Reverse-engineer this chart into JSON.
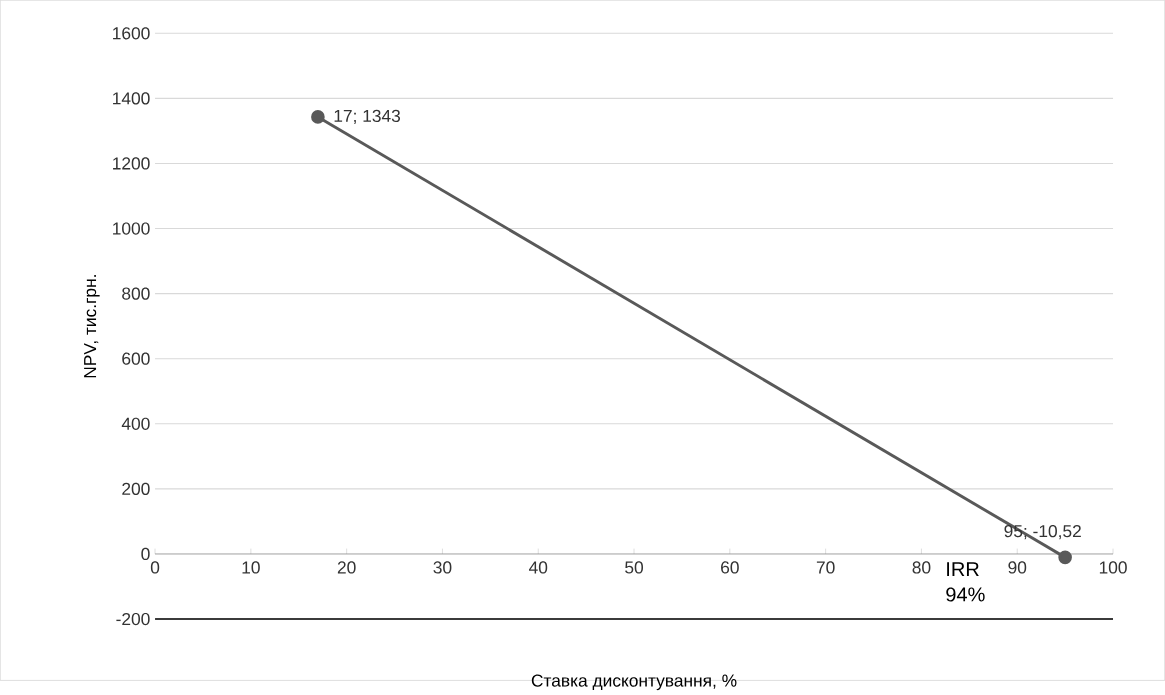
{
  "chart_data": {
    "type": "line",
    "xlabel": "Ставка дисконтування, %",
    "ylabel": "NPV, тис.грн.",
    "x": [
      17,
      95
    ],
    "series": [
      {
        "color": "#595959",
        "values": [
          1343,
          -10.52
        ],
        "value_labels": [
          "17; 1343",
          "95; -10,52"
        ]
      }
    ],
    "xlim": [
      0,
      100
    ],
    "xticks": [
      0,
      10,
      20,
      30,
      40,
      50,
      60,
      70,
      80,
      90,
      100
    ],
    "ylim": [
      -200,
      1600
    ],
    "yticks": [
      -200,
      0,
      200,
      400,
      600,
      800,
      1000,
      1200,
      1400,
      1600
    ],
    "grid": "y",
    "marker": "circle",
    "line_style": "solid",
    "annotations": [
      "IRR 94%"
    ]
  }
}
